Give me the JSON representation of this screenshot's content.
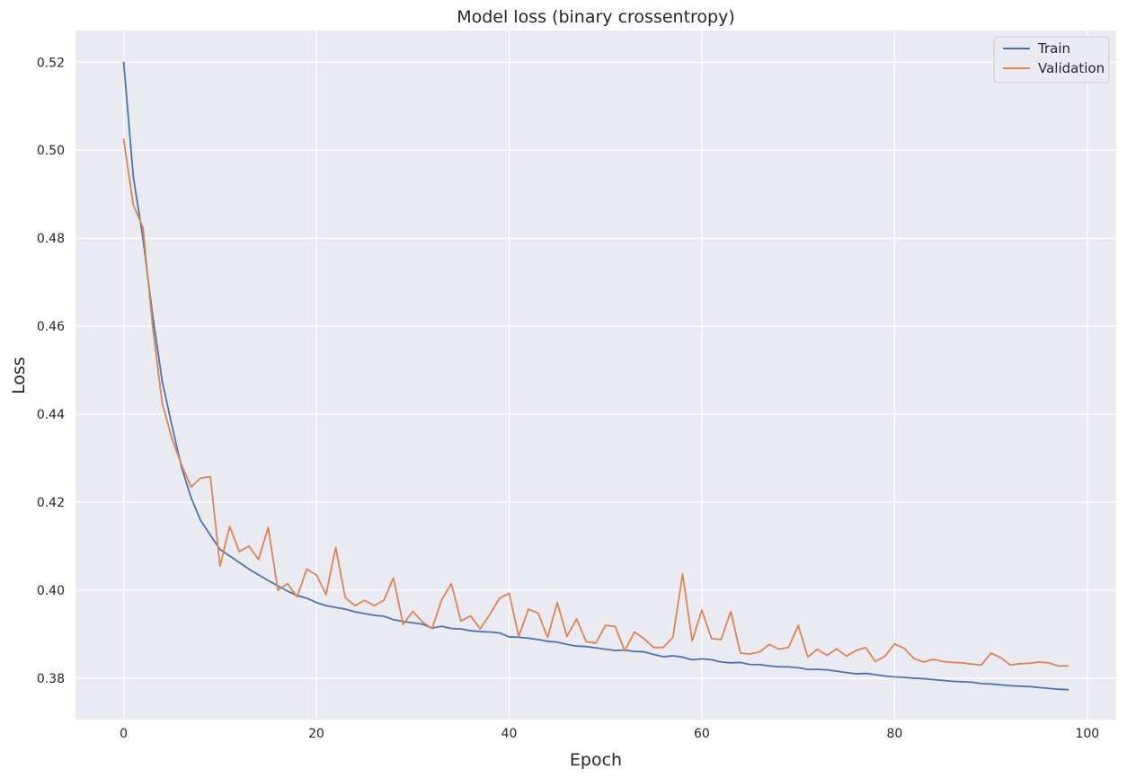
{
  "chart_data": {
    "type": "line",
    "title": "Model loss (binary crossentropy)",
    "xlabel": "Epoch",
    "ylabel": "Loss",
    "xlim": [
      -5,
      103
    ],
    "ylim": [
      0.3706,
      0.5272
    ],
    "xticks": [
      0,
      20,
      40,
      60,
      80,
      100
    ],
    "yticks": [
      0.38,
      0.4,
      0.42,
      0.44,
      0.46,
      0.48,
      0.5,
      0.52
    ],
    "ytick_labels": [
      "0.38",
      "0.40",
      "0.42",
      "0.44",
      "0.46",
      "0.48",
      "0.50",
      "0.52"
    ],
    "grid": true,
    "legend_position": "top-right",
    "series": [
      {
        "name": "Train",
        "color": "#4c72b0",
        "values": [
          0.52,
          0.494,
          0.48,
          0.4625,
          0.4475,
          0.4375,
          0.428,
          0.421,
          0.4158,
          0.4125,
          0.4093,
          0.4078,
          0.4063,
          0.4048,
          0.4035,
          0.4022,
          0.401,
          0.3998,
          0.3988,
          0.3982,
          0.3972,
          0.3965,
          0.3961,
          0.3957,
          0.3951,
          0.3947,
          0.3943,
          0.3941,
          0.3933,
          0.3929,
          0.3926,
          0.3923,
          0.3914,
          0.3918,
          0.3913,
          0.3912,
          0.3908,
          0.3906,
          0.3905,
          0.3903,
          0.3894,
          0.3893,
          0.3891,
          0.3888,
          0.3884,
          0.3882,
          0.3877,
          0.3873,
          0.3872,
          0.3869,
          0.3866,
          0.3863,
          0.3864,
          0.3861,
          0.386,
          0.3854,
          0.3849,
          0.3851,
          0.3848,
          0.3842,
          0.3844,
          0.3842,
          0.3837,
          0.3835,
          0.3836,
          0.3831,
          0.3831,
          0.3828,
          0.3826,
          0.3826,
          0.3824,
          0.382,
          0.382,
          0.3819,
          0.3816,
          0.3813,
          0.381,
          0.3811,
          0.3808,
          0.3805,
          0.3803,
          0.3802,
          0.38,
          0.3799,
          0.3797,
          0.3795,
          0.3793,
          0.3792,
          0.3791,
          0.3788,
          0.3787,
          0.3785,
          0.3783,
          0.3782,
          0.3781,
          0.3779,
          0.3777,
          0.3775,
          0.3774
        ]
      },
      {
        "name": "Validation",
        "color": "#dd8452",
        "values": [
          0.5025,
          0.4875,
          0.4825,
          0.46,
          0.4425,
          0.4345,
          0.4285,
          0.4235,
          0.4255,
          0.4258,
          0.4055,
          0.4145,
          0.4088,
          0.41,
          0.407,
          0.4143,
          0.4,
          0.4015,
          0.3985,
          0.4048,
          0.4035,
          0.399,
          0.4097,
          0.3983,
          0.3965,
          0.3977,
          0.3965,
          0.3977,
          0.4028,
          0.3922,
          0.3952,
          0.3928,
          0.3913,
          0.3978,
          0.4015,
          0.393,
          0.3942,
          0.3912,
          0.3945,
          0.3982,
          0.3993,
          0.3895,
          0.3957,
          0.3948,
          0.3893,
          0.3972,
          0.3895,
          0.3935,
          0.3883,
          0.388,
          0.392,
          0.3918,
          0.3862,
          0.3905,
          0.389,
          0.387,
          0.387,
          0.3893,
          0.4037,
          0.3885,
          0.3955,
          0.389,
          0.3888,
          0.3952,
          0.3857,
          0.3855,
          0.386,
          0.3877,
          0.3866,
          0.387,
          0.392,
          0.3848,
          0.3866,
          0.3852,
          0.3867,
          0.385,
          0.3863,
          0.387,
          0.3838,
          0.385,
          0.3878,
          0.3868,
          0.3845,
          0.3837,
          0.3843,
          0.3838,
          0.3836,
          0.3835,
          0.3832,
          0.383,
          0.3857,
          0.3847,
          0.383,
          0.3833,
          0.3834,
          0.3837,
          0.3835,
          0.3828,
          0.3828
        ]
      }
    ]
  }
}
